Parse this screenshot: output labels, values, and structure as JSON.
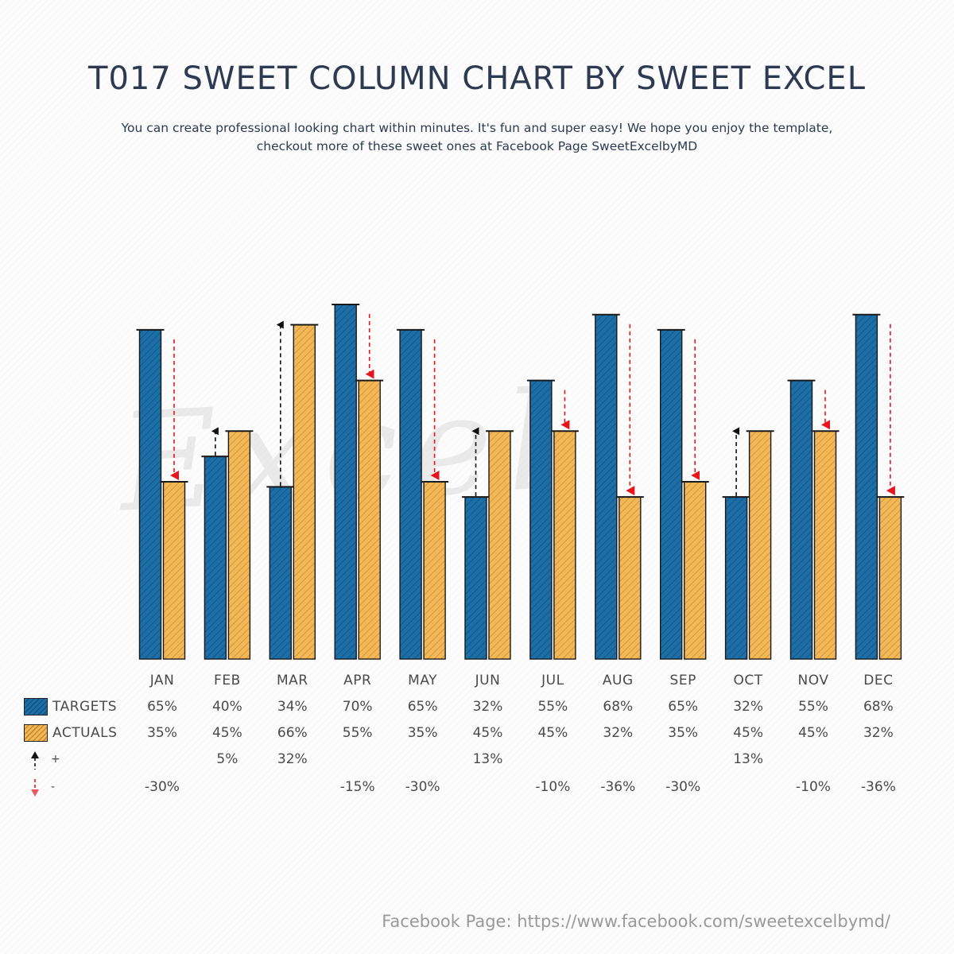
{
  "title": "T017 SWEET COLUMN CHART BY SWEET EXCEL",
  "subtitle_line1": "You can create professional looking chart within minutes. It's fun and super easy! We hope you enjoy the template,",
  "subtitle_line2": "checkout more of these sweet ones at Facebook Page SweetExcelbyMD",
  "watermark": "Excel",
  "footer": "Facebook Page: https://www.facebook.com/sweetexcelbymd/",
  "colors": {
    "targets": "#1d6ea6",
    "targets_hatch": "#0f4e7a",
    "actuals": "#f2b858",
    "actuals_hatch": "#c78a2c",
    "increase_arrow": "#111111",
    "decrease_arrow": "#e8141c"
  },
  "chart_data": {
    "type": "bar",
    "categories": [
      "JAN",
      "FEB",
      "MAR",
      "APR",
      "MAY",
      "JUN",
      "JUL",
      "AUG",
      "SEP",
      "OCT",
      "NOV",
      "DEC"
    ],
    "series": [
      {
        "name": "TARGETS",
        "values": [
          65,
          40,
          34,
          70,
          65,
          32,
          55,
          68,
          65,
          32,
          55,
          68
        ],
        "labels": [
          "65%",
          "40%",
          "34%",
          "70%",
          "65%",
          "32%",
          "55%",
          "68%",
          "65%",
          "32%",
          "55%",
          "68%"
        ]
      },
      {
        "name": "ACTUALS",
        "values": [
          35,
          45,
          66,
          55,
          35,
          45,
          45,
          32,
          35,
          45,
          45,
          32
        ],
        "labels": [
          "35%",
          "45%",
          "66%",
          "55%",
          "35%",
          "45%",
          "45%",
          "32%",
          "35%",
          "45%",
          "45%",
          "32%"
        ]
      }
    ],
    "increase": {
      "name": "+",
      "labels": [
        "",
        "5%",
        "32%",
        "",
        "",
        "13%",
        "",
        "",
        "",
        "13%",
        "",
        ""
      ]
    },
    "decrease": {
      "name": "-",
      "labels": [
        "-30%",
        "",
        "",
        "-15%",
        "-30%",
        "",
        "-10%",
        "-36%",
        "-30%",
        "",
        "-10%",
        "-36%"
      ]
    },
    "ylim": [
      0,
      70
    ],
    "unit": "%",
    "grid": false,
    "legend": "bottom-left"
  }
}
